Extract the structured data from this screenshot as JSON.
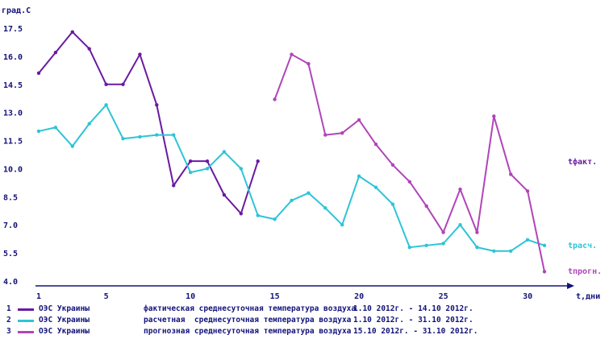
{
  "chart_data": {
    "type": "line",
    "ylabel": "град.С",
    "xlabel": "t,дни",
    "xlim": [
      1,
      31
    ],
    "ylim": [
      4.0,
      17.5
    ],
    "yticks": [
      "17.5",
      "16.0",
      "14.5",
      "13.0",
      "11.5",
      "10.0",
      "8.5",
      "7.0",
      "5.5",
      "4.0"
    ],
    "xticks": [
      "1",
      "5",
      "10",
      "15",
      "20",
      "25",
      "30"
    ],
    "grid": false,
    "series": [
      {
        "name": "tфакт.",
        "color": "#6a1aa0",
        "x": [
          1,
          2,
          3,
          4,
          5,
          6,
          7,
          8,
          9,
          10,
          11,
          12,
          13,
          14
        ],
        "values": [
          15.1,
          16.2,
          17.3,
          16.4,
          14.5,
          14.5,
          16.1,
          13.4,
          9.1,
          10.4,
          10.4,
          8.6,
          7.6,
          10.4
        ]
      },
      {
        "name": "tрасч.",
        "color": "#2ec4d6",
        "x": [
          1,
          2,
          3,
          4,
          5,
          6,
          7,
          8,
          9,
          10,
          11,
          12,
          13,
          14,
          15,
          16,
          17,
          18,
          19,
          20,
          21,
          22,
          23,
          24,
          25,
          26,
          27,
          28,
          29,
          30,
          31
        ],
        "values": [
          12.0,
          12.2,
          11.2,
          12.4,
          13.4,
          11.6,
          11.7,
          11.8,
          11.8,
          9.8,
          10.0,
          10.9,
          10.0,
          7.5,
          7.3,
          8.3,
          8.7,
          7.9,
          7.0,
          9.6,
          9.0,
          8.1,
          5.8,
          5.9,
          6.0,
          7.0,
          5.8,
          5.6,
          5.6,
          6.2,
          5.9
        ]
      },
      {
        "name": "tпрогн.",
        "color": "#b045b8",
        "x": [
          15,
          16,
          17,
          18,
          19,
          20,
          21,
          22,
          23,
          24,
          25,
          26,
          27,
          28,
          29,
          30,
          31
        ],
        "values": [
          13.7,
          16.1,
          15.6,
          11.8,
          11.9,
          12.6,
          11.3,
          10.2,
          9.3,
          8.0,
          6.6,
          8.9,
          6.6,
          12.8,
          9.7,
          8.8,
          4.5
        ]
      }
    ],
    "legend": [
      {
        "num": "1",
        "color": "#6a1aa0",
        "source": "ОЭС Украины",
        "description": "фактическая среднесуточная температура воздуха",
        "period": "1.10 2012г. - 14.10 2012г."
      },
      {
        "num": "2",
        "color": "#2ec4d6",
        "source": "ОЭС Украины",
        "description": "расчетная  среднесуточная температура воздуха",
        "period": "1.10 2012г. - 31.10 2012г."
      },
      {
        "num": "3",
        "color": "#b045b8",
        "source": "ОЭС Украины",
        "description": "прогнозная среднесуточная температура воздуха",
        "period": "15.10 2012г. - 31.10 2012г."
      }
    ]
  }
}
